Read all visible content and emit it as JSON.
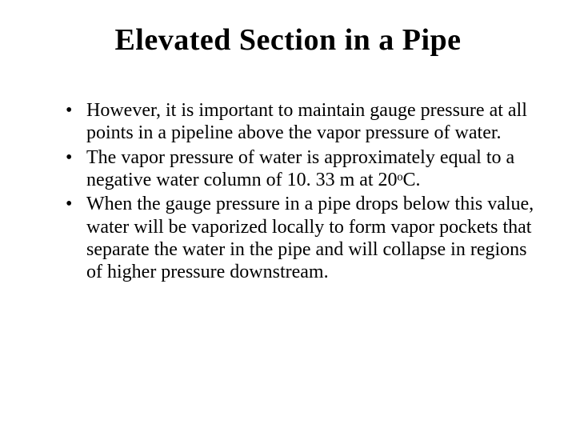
{
  "title": "Elevated Section  in a Pipe",
  "bullets": [
    "However, it is important to maintain gauge pressure at all points in a pipeline above the vapor pressure of water.",
    "The vapor pressure of water is approximately equal to a negative water column of 10. 33 m at 20ᵒC.",
    "When the gauge pressure in a pipe drops below this value, water will be vaporized locally to form vapor pockets that separate the water in the pipe and will collapse in regions of higher pressure downstream."
  ],
  "colors": {
    "background": "#ffffff",
    "text": "#000000"
  },
  "typography": {
    "title_fontsize": 38,
    "title_weight": "bold",
    "body_fontsize": 24,
    "font_family": "Times New Roman"
  }
}
